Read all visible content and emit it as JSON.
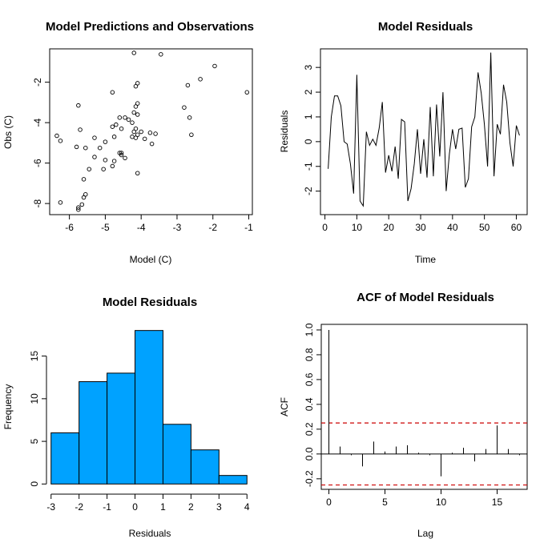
{
  "chart_data": [
    {
      "type": "scatter",
      "title": "Model Predictions and Observations",
      "xlabel": "Model (C)",
      "ylabel": "Obs (C)",
      "xlim": [
        -6.55,
        -0.9
      ],
      "ylim": [
        -8.55,
        -0.35
      ],
      "xticks": [
        -6,
        -5,
        -4,
        -3,
        -2,
        -1
      ],
      "yticks": [
        -8,
        -6,
        -4,
        -2
      ],
      "grid": false,
      "marker": "open-circle",
      "x": [
        -4.2,
        -3.45,
        -1.95,
        -1.05,
        -2.35,
        -2.7,
        -2.65,
        -2.6,
        -2.8,
        -4.1,
        -4.15,
        -4.8,
        -5.75,
        -4.1,
        -4.15,
        -4.2,
        -4.1,
        -4.25,
        -4.15,
        -4.45,
        -4.6,
        -4.35,
        -4.7,
        -4.8,
        -4.55,
        -4.75,
        -5.0,
        -5.3,
        -5.55,
        -5.7,
        -6.35,
        -6.25,
        -5.8,
        -4.2,
        -4.25,
        -4.15,
        -4.0,
        -3.6,
        -3.75,
        -3.9,
        -3.7,
        -4.1,
        -4.55,
        -4.75,
        -5.0,
        -5.15,
        -5.3,
        -5.45,
        -5.6,
        -5.05,
        -4.6,
        -4.55,
        -4.45,
        -4.8,
        -4.1,
        -5.55,
        -5.6,
        -5.65,
        -5.75,
        -5.75,
        -6.25
      ],
      "y": [
        -0.55,
        -0.62,
        -1.2,
        -2.5,
        -1.85,
        -2.15,
        -3.75,
        -4.6,
        -3.25,
        -2.05,
        -2.2,
        -2.5,
        -3.15,
        -3.05,
        -3.2,
        -3.5,
        -3.6,
        -4.0,
        -4.3,
        -3.75,
        -3.75,
        -3.85,
        -4.1,
        -4.2,
        -4.3,
        -4.7,
        -4.95,
        -4.75,
        -5.25,
        -4.35,
        -4.65,
        -4.9,
        -5.2,
        -4.45,
        -4.7,
        -4.75,
        -4.45,
        -4.55,
        -4.5,
        -4.8,
        -5.05,
        -4.6,
        -5.5,
        -5.9,
        -5.85,
        -5.25,
        -5.7,
        -6.3,
        -6.8,
        -6.3,
        -5.5,
        -5.6,
        -5.75,
        -6.15,
        -6.5,
        -7.55,
        -7.7,
        -8.05,
        -8.2,
        -8.3,
        -7.95
      ]
    },
    {
      "type": "line",
      "title": "Model Residuals",
      "xlabel": "Time",
      "ylabel": "Residuals",
      "xlim": [
        -1.4,
        63.4
      ],
      "ylim": [
        -2.95,
        3.75
      ],
      "xticks": [
        0,
        10,
        20,
        30,
        40,
        50,
        60
      ],
      "yticks": [
        -2,
        -1,
        0,
        1,
        2,
        3
      ],
      "grid": false,
      "x": [
        1,
        2,
        3,
        4,
        5,
        6,
        7,
        8,
        9,
        10,
        11,
        12,
        13,
        14,
        15,
        16,
        17,
        18,
        19,
        20,
        21,
        22,
        23,
        24,
        25,
        26,
        27,
        28,
        29,
        30,
        31,
        32,
        33,
        34,
        35,
        36,
        37,
        38,
        39,
        40,
        41,
        42,
        43,
        44,
        45,
        46,
        47,
        48,
        49,
        50,
        51,
        52,
        53,
        54,
        55,
        56,
        57,
        58,
        59,
        60,
        61
      ],
      "y": [
        -1.1,
        1.0,
        1.85,
        1.85,
        1.45,
        0.0,
        -0.1,
        -0.9,
        -2.1,
        2.7,
        -2.4,
        -2.6,
        0.4,
        -0.15,
        0.1,
        -0.15,
        0.55,
        1.6,
        -1.25,
        -0.55,
        -1.2,
        -0.2,
        -1.5,
        0.9,
        0.8,
        -2.4,
        -1.9,
        -0.9,
        0.5,
        -1.3,
        0.1,
        -1.45,
        1.4,
        -1.4,
        1.5,
        -0.6,
        2.0,
        -2.0,
        -0.5,
        0.5,
        -0.3,
        0.5,
        0.55,
        -1.85,
        -1.5,
        0.6,
        1.0,
        2.8,
        1.95,
        0.7,
        -1.0,
        3.6,
        -1.4,
        0.7,
        0.3,
        2.3,
        1.6,
        -0.05,
        -1.0,
        0.65,
        0.25
      ]
    },
    {
      "type": "bar",
      "title": "Model Residuals",
      "xlabel": "Residuals",
      "ylabel": "Frequency",
      "bin_edges": [
        -3,
        -2,
        -1,
        0,
        1,
        2,
        3,
        4
      ],
      "categories": [
        "-3 to -2",
        "-2 to -1",
        "-1 to 0",
        "0 to 1",
        "1 to 2",
        "2 to 3",
        "3 to 4"
      ],
      "values": [
        6,
        12,
        13,
        18,
        7,
        4,
        1
      ],
      "xlim": [
        -3.05,
        4.05
      ],
      "ylim": [
        -0.72,
        18.72
      ],
      "xticks": [
        -3,
        -2,
        -1,
        0,
        1,
        2,
        3,
        4
      ],
      "yticks": [
        0,
        5,
        10,
        15
      ],
      "grid": false,
      "color": "#00a2ff"
    },
    {
      "type": "bar",
      "title": "ACF of Model Residuals",
      "xlabel": "Lag",
      "ylabel": "ACF",
      "lags": [
        0,
        1,
        2,
        3,
        4,
        5,
        6,
        7,
        8,
        9,
        10,
        11,
        12,
        13,
        14,
        15,
        16,
        17
      ],
      "values": [
        1.0,
        0.06,
        -0.01,
        -0.1,
        0.1,
        0.02,
        0.06,
        0.07,
        0.01,
        -0.01,
        -0.18,
        0.01,
        0.05,
        -0.06,
        0.04,
        0.23,
        0.04,
        -0.01
      ],
      "confidence_limits": [
        0.25,
        -0.25
      ],
      "xlim": [
        -0.68,
        17.68
      ],
      "ylim": [
        -0.285,
        1.045
      ],
      "xticks": [
        0,
        5,
        10,
        15
      ],
      "yticks": [
        -0.2,
        0.0,
        0.2,
        0.4,
        0.6,
        0.8,
        1.0
      ],
      "grid": false,
      "confidence_color": "#cc0000"
    }
  ]
}
